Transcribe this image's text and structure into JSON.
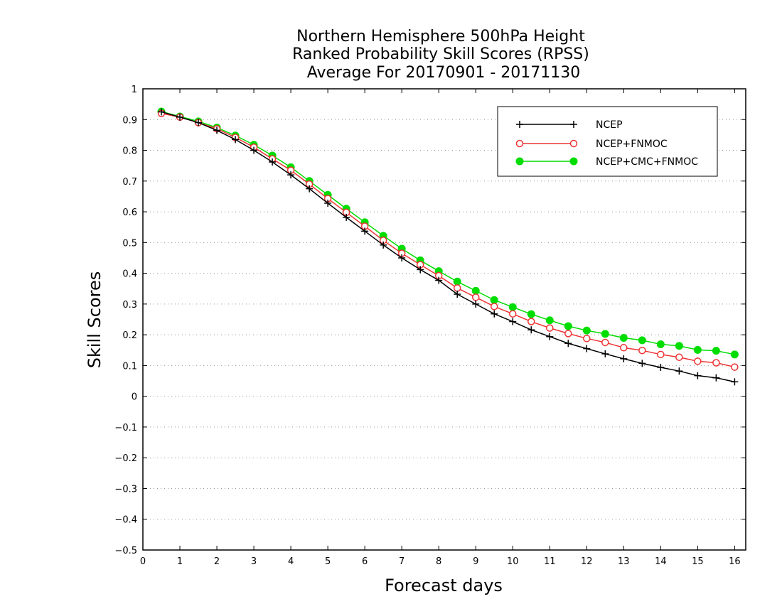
{
  "chart_data": {
    "type": "line",
    "title_lines": [
      "Northern Hemisphere 500hPa Height",
      "Ranked Probability Skill Scores (RPSS)",
      "Average For 20170901 - 20171130"
    ],
    "xlabel": "Forecast days",
    "ylabel": "Skill Scores",
    "xlim": [
      0,
      16.3
    ],
    "ylim": [
      -0.5,
      1.0
    ],
    "xticks": [
      "0",
      "1",
      "2",
      "3",
      "4",
      "5",
      "6",
      "7",
      "8",
      "9",
      "10",
      "11",
      "12",
      "13",
      "14",
      "15",
      "16"
    ],
    "yticks": [
      "1",
      "0.9",
      "0.8",
      "0.7",
      "0.6",
      "0.5",
      "0.4",
      "0.3",
      "0.2",
      "0.1",
      "0",
      "-0.1",
      "-0.2",
      "-0.3",
      "-0.4",
      "-0.5"
    ],
    "grid": "horizontal dotted",
    "legend_position": "top-right",
    "x": [
      0.5,
      1,
      1.5,
      2,
      2.5,
      3,
      3.5,
      4,
      4.5,
      5,
      5.5,
      6,
      6.5,
      7,
      7.5,
      8,
      8.5,
      9,
      9.5,
      10,
      10.5,
      11,
      11.5,
      12,
      12.5,
      13,
      13.5,
      14,
      14.5,
      15,
      15.5,
      16
    ],
    "series": [
      {
        "name": "NCEP",
        "color": "#000000",
        "marker": "plus",
        "values": [
          0.925,
          0.908,
          0.89,
          0.865,
          0.835,
          0.8,
          0.762,
          0.72,
          0.675,
          0.628,
          0.582,
          0.537,
          0.492,
          0.45,
          0.412,
          0.377,
          0.332,
          0.3,
          0.268,
          0.243,
          0.216,
          0.194,
          0.172,
          0.155,
          0.138,
          0.122,
          0.107,
          0.094,
          0.082,
          0.067,
          0.06,
          0.047
        ]
      },
      {
        "name": "NCEP+FNMOC",
        "color": "#ee3333",
        "marker": "open-circle",
        "values": [
          0.92,
          0.908,
          0.89,
          0.87,
          0.842,
          0.81,
          0.772,
          0.735,
          0.69,
          0.643,
          0.598,
          0.553,
          0.507,
          0.465,
          0.428,
          0.392,
          0.352,
          0.322,
          0.292,
          0.268,
          0.243,
          0.222,
          0.204,
          0.188,
          0.175,
          0.158,
          0.149,
          0.136,
          0.127,
          0.114,
          0.109,
          0.095
        ]
      },
      {
        "name": "NCEP+CMC+FNMOC",
        "color": "#00dd00",
        "marker": "filled-circle",
        "values": [
          0.926,
          0.91,
          0.894,
          0.874,
          0.848,
          0.818,
          0.783,
          0.745,
          0.7,
          0.655,
          0.61,
          0.566,
          0.522,
          0.48,
          0.442,
          0.407,
          0.373,
          0.343,
          0.313,
          0.29,
          0.267,
          0.247,
          0.228,
          0.214,
          0.203,
          0.19,
          0.182,
          0.169,
          0.164,
          0.151,
          0.148,
          0.136
        ]
      }
    ]
  }
}
